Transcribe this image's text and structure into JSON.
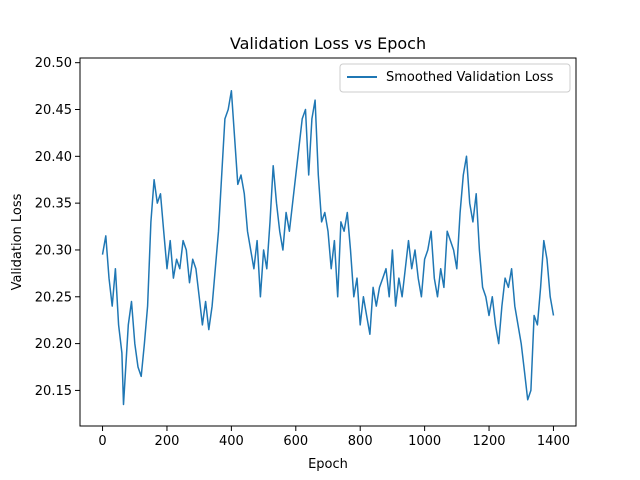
{
  "chart_data": {
    "type": "line",
    "title": "Validation Loss vs Epoch",
    "xlabel": "Epoch",
    "ylabel": "Validation Loss",
    "xlim": [
      -70,
      1470
    ],
    "ylim": [
      20.112,
      20.505
    ],
    "xticks": [
      0,
      200,
      400,
      600,
      800,
      1000,
      1200,
      1400
    ],
    "yticks": [
      20.15,
      20.2,
      20.25,
      20.3,
      20.35,
      20.4,
      20.45,
      20.5
    ],
    "ytick_labels": [
      "20.15",
      "20.20",
      "20.25",
      "20.30",
      "20.35",
      "20.40",
      "20.45",
      "20.50"
    ],
    "grid": false,
    "legend_position": "top-right",
    "series": [
      {
        "name": "Smoothed Validation Loss",
        "color": "#1f77b4",
        "x": [
          0,
          10,
          20,
          30,
          40,
          50,
          60,
          65,
          80,
          90,
          100,
          110,
          120,
          130,
          140,
          150,
          160,
          170,
          180,
          190,
          200,
          210,
          220,
          230,
          240,
          250,
          260,
          270,
          280,
          290,
          300,
          310,
          320,
          330,
          340,
          350,
          360,
          370,
          380,
          390,
          400,
          410,
          420,
          430,
          440,
          450,
          460,
          470,
          480,
          490,
          500,
          510,
          520,
          530,
          540,
          550,
          560,
          570,
          580,
          590,
          600,
          610,
          620,
          630,
          640,
          650,
          660,
          670,
          680,
          690,
          700,
          710,
          720,
          730,
          740,
          750,
          760,
          770,
          780,
          790,
          800,
          810,
          820,
          830,
          840,
          850,
          860,
          870,
          880,
          890,
          900,
          910,
          920,
          930,
          940,
          950,
          960,
          970,
          980,
          990,
          1000,
          1010,
          1020,
          1030,
          1040,
          1050,
          1060,
          1070,
          1080,
          1090,
          1100,
          1110,
          1120,
          1130,
          1140,
          1150,
          1160,
          1170,
          1180,
          1190,
          1200,
          1210,
          1220,
          1230,
          1240,
          1250,
          1260,
          1270,
          1280,
          1290,
          1300,
          1310,
          1320,
          1330,
          1340,
          1350,
          1360,
          1370,
          1380,
          1390,
          1400
        ],
        "y": [
          20.295,
          20.315,
          20.27,
          20.24,
          20.28,
          20.22,
          20.19,
          20.135,
          20.22,
          20.245,
          20.2,
          20.175,
          20.165,
          20.2,
          20.24,
          20.33,
          20.375,
          20.35,
          20.36,
          20.32,
          20.28,
          20.31,
          20.27,
          20.29,
          20.28,
          20.31,
          20.3,
          20.265,
          20.29,
          20.28,
          20.25,
          20.22,
          20.245,
          20.215,
          20.24,
          20.28,
          20.32,
          20.38,
          20.44,
          20.45,
          20.47,
          20.42,
          20.37,
          20.38,
          20.36,
          20.32,
          20.3,
          20.28,
          20.31,
          20.25,
          20.3,
          20.28,
          20.33,
          20.39,
          20.35,
          20.32,
          20.3,
          20.34,
          20.32,
          20.35,
          20.38,
          20.41,
          20.44,
          20.45,
          20.38,
          20.44,
          20.46,
          20.38,
          20.33,
          20.34,
          20.32,
          20.28,
          20.31,
          20.25,
          20.33,
          20.32,
          20.34,
          20.3,
          20.25,
          20.27,
          20.22,
          20.25,
          20.23,
          20.21,
          20.26,
          20.24,
          20.26,
          20.27,
          20.28,
          20.25,
          20.3,
          20.24,
          20.27,
          20.25,
          20.28,
          20.31,
          20.28,
          20.3,
          20.27,
          20.25,
          20.29,
          20.3,
          20.32,
          20.27,
          20.25,
          20.28,
          20.26,
          20.32,
          20.31,
          20.3,
          20.28,
          20.34,
          20.38,
          20.4,
          20.35,
          20.33,
          20.36,
          20.3,
          20.26,
          20.25,
          20.23,
          20.25,
          20.22,
          20.2,
          20.24,
          20.27,
          20.26,
          20.28,
          20.24,
          20.22,
          20.2,
          20.17,
          20.14,
          20.15,
          20.23,
          20.22,
          20.26,
          20.31,
          20.29,
          20.25,
          20.23
        ]
      }
    ]
  }
}
